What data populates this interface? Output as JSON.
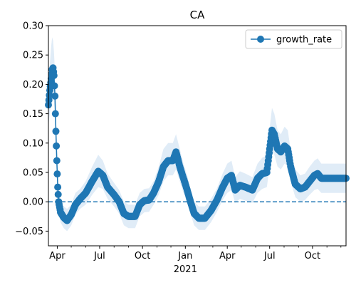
{
  "chart_data": {
    "type": "line",
    "title": "CA",
    "xlabel": "2021",
    "ylabel": "",
    "ylim": [
      -0.075,
      0.3
    ],
    "xlim": [
      "2020-03-13",
      "2021-12-12"
    ],
    "x_ticks": [
      {
        "date": "2020-04-01",
        "label": "Apr"
      },
      {
        "date": "2020-07-01",
        "label": "Jul"
      },
      {
        "date": "2020-10-01",
        "label": "Oct"
      },
      {
        "date": "2021-01-01",
        "label": "Jan"
      },
      {
        "date": "2021-04-01",
        "label": "Apr"
      },
      {
        "date": "2021-07-01",
        "label": "Jul"
      },
      {
        "date": "2021-10-01",
        "label": "Oct"
      }
    ],
    "x_minor_ticks": [
      "2020-05-01",
      "2020-06-01",
      "2020-08-01",
      "2020-09-01",
      "2020-11-01",
      "2020-12-01",
      "2021-02-01",
      "2021-03-01",
      "2021-05-01",
      "2021-06-01",
      "2021-08-01",
      "2021-09-01",
      "2021-11-01",
      "2021-12-01"
    ],
    "y_ticks": [
      -0.05,
      0.0,
      0.05,
      0.1,
      0.15,
      0.2,
      0.25,
      0.3
    ],
    "y_tick_labels": [
      "−0.05",
      "0.00",
      "0.05",
      "0.10",
      "0.15",
      "0.20",
      "0.25",
      "0.30"
    ],
    "reference_line": {
      "y": 0.0,
      "style": "dashed"
    },
    "legend": {
      "position": "top-right",
      "entries": [
        "growth_rate"
      ]
    },
    "grid": false,
    "series": [
      {
        "name": "growth_rate",
        "color": "#1f77b4",
        "band_color": "#d6e6f4",
        "points": [
          {
            "x": "2020-03-13",
            "y": 0.165,
            "lo": 0.13,
            "hi": 0.2
          },
          {
            "x": "2020-03-16",
            "y": 0.19,
            "lo": 0.15,
            "hi": 0.235
          },
          {
            "x": "2020-03-19",
            "y": 0.21,
            "lo": 0.17,
            "hi": 0.265
          },
          {
            "x": "2020-03-21",
            "y": 0.225,
            "lo": 0.18,
            "hi": 0.28
          },
          {
            "x": "2020-03-23",
            "y": 0.228,
            "lo": 0.185,
            "hi": 0.275
          },
          {
            "x": "2020-03-25",
            "y": 0.215,
            "lo": 0.17,
            "hi": 0.255
          },
          {
            "x": "2020-03-27",
            "y": 0.18,
            "lo": 0.14,
            "hi": 0.22
          },
          {
            "x": "2020-03-29",
            "y": 0.12,
            "lo": 0.09,
            "hi": 0.155
          },
          {
            "x": "2020-03-31",
            "y": 0.07,
            "lo": 0.045,
            "hi": 0.1
          },
          {
            "x": "2020-04-02",
            "y": 0.025,
            "lo": 0.005,
            "hi": 0.05
          },
          {
            "x": "2020-04-04",
            "y": 0.0,
            "lo": -0.015,
            "hi": 0.02
          },
          {
            "x": "2020-04-08",
            "y": -0.018,
            "lo": -0.035,
            "hi": 0.0
          },
          {
            "x": "2020-04-15",
            "y": -0.027,
            "lo": -0.045,
            "hi": -0.008
          },
          {
            "x": "2020-04-22",
            "y": -0.032,
            "lo": -0.05,
            "hi": -0.012
          },
          {
            "x": "2020-05-01",
            "y": -0.022,
            "lo": -0.04,
            "hi": -0.005
          },
          {
            "x": "2020-05-10",
            "y": -0.005,
            "lo": -0.022,
            "hi": 0.015
          },
          {
            "x": "2020-05-20",
            "y": 0.005,
            "lo": -0.012,
            "hi": 0.022
          },
          {
            "x": "2020-06-01",
            "y": 0.015,
            "lo": -0.005,
            "hi": 0.035
          },
          {
            "x": "2020-06-15",
            "y": 0.035,
            "lo": 0.012,
            "hi": 0.06
          },
          {
            "x": "2020-06-28",
            "y": 0.052,
            "lo": 0.025,
            "hi": 0.08
          },
          {
            "x": "2020-07-08",
            "y": 0.045,
            "lo": 0.022,
            "hi": 0.07
          },
          {
            "x": "2020-07-18",
            "y": 0.025,
            "lo": 0.005,
            "hi": 0.048
          },
          {
            "x": "2020-08-01",
            "y": 0.012,
            "lo": -0.008,
            "hi": 0.032
          },
          {
            "x": "2020-08-12",
            "y": 0.0,
            "lo": -0.02,
            "hi": 0.02
          },
          {
            "x": "2020-08-22",
            "y": -0.02,
            "lo": -0.04,
            "hi": 0.0
          },
          {
            "x": "2020-09-01",
            "y": -0.025,
            "lo": -0.045,
            "hi": -0.005
          },
          {
            "x": "2020-09-15",
            "y": -0.025,
            "lo": -0.045,
            "hi": -0.005
          },
          {
            "x": "2020-09-25",
            "y": -0.005,
            "lo": -0.025,
            "hi": 0.015
          },
          {
            "x": "2020-10-05",
            "y": 0.002,
            "lo": -0.018,
            "hi": 0.022
          },
          {
            "x": "2020-10-15",
            "y": 0.003,
            "lo": -0.017,
            "hi": 0.023
          },
          {
            "x": "2020-10-25",
            "y": 0.015,
            "lo": -0.005,
            "hi": 0.035
          },
          {
            "x": "2020-11-05",
            "y": 0.035,
            "lo": 0.012,
            "hi": 0.06
          },
          {
            "x": "2020-11-15",
            "y": 0.06,
            "lo": 0.035,
            "hi": 0.09
          },
          {
            "x": "2020-11-25",
            "y": 0.07,
            "lo": 0.045,
            "hi": 0.1
          },
          {
            "x": "2020-12-05",
            "y": 0.07,
            "lo": 0.045,
            "hi": 0.1
          },
          {
            "x": "2020-12-12",
            "y": 0.085,
            "lo": 0.055,
            "hi": 0.115
          },
          {
            "x": "2020-12-20",
            "y": 0.06,
            "lo": 0.035,
            "hi": 0.09
          },
          {
            "x": "2020-12-28",
            "y": 0.04,
            "lo": 0.015,
            "hi": 0.065
          },
          {
            "x": "2021-01-05",
            "y": 0.02,
            "lo": -0.002,
            "hi": 0.045
          },
          {
            "x": "2021-01-12",
            "y": 0.0,
            "lo": -0.02,
            "hi": 0.022
          },
          {
            "x": "2021-01-20",
            "y": -0.02,
            "lo": -0.04,
            "hi": 0.0
          },
          {
            "x": "2021-01-30",
            "y": -0.028,
            "lo": -0.048,
            "hi": -0.008
          },
          {
            "x": "2021-02-12",
            "y": -0.028,
            "lo": -0.048,
            "hi": -0.008
          },
          {
            "x": "2021-02-25",
            "y": -0.015,
            "lo": -0.035,
            "hi": 0.005
          },
          {
            "x": "2021-03-10",
            "y": 0.003,
            "lo": -0.017,
            "hi": 0.023
          },
          {
            "x": "2021-03-22",
            "y": 0.025,
            "lo": 0.003,
            "hi": 0.048
          },
          {
            "x": "2021-04-01",
            "y": 0.04,
            "lo": 0.015,
            "hi": 0.065
          },
          {
            "x": "2021-04-10",
            "y": 0.045,
            "lo": 0.02,
            "hi": 0.07
          },
          {
            "x": "2021-04-18",
            "y": 0.02,
            "lo": -0.002,
            "hi": 0.042
          },
          {
            "x": "2021-04-28",
            "y": 0.028,
            "lo": 0.005,
            "hi": 0.052
          },
          {
            "x": "2021-05-10",
            "y": 0.025,
            "lo": 0.002,
            "hi": 0.048
          },
          {
            "x": "2021-05-25",
            "y": 0.02,
            "lo": -0.002,
            "hi": 0.042
          },
          {
            "x": "2021-06-05",
            "y": 0.04,
            "lo": 0.015,
            "hi": 0.065
          },
          {
            "x": "2021-06-15",
            "y": 0.048,
            "lo": 0.022,
            "hi": 0.075
          },
          {
            "x": "2021-06-25",
            "y": 0.05,
            "lo": 0.025,
            "hi": 0.078
          },
          {
            "x": "2021-07-01",
            "y": 0.09,
            "lo": 0.06,
            "hi": 0.125
          },
          {
            "x": "2021-07-06",
            "y": 0.122,
            "lo": 0.085,
            "hi": 0.16
          },
          {
            "x": "2021-07-11",
            "y": 0.115,
            "lo": 0.08,
            "hi": 0.15
          },
          {
            "x": "2021-07-18",
            "y": 0.09,
            "lo": 0.06,
            "hi": 0.122
          },
          {
            "x": "2021-07-25",
            "y": 0.085,
            "lo": 0.055,
            "hi": 0.115
          },
          {
            "x": "2021-08-02",
            "y": 0.095,
            "lo": 0.065,
            "hi": 0.128
          },
          {
            "x": "2021-08-09",
            "y": 0.09,
            "lo": 0.06,
            "hi": 0.122
          },
          {
            "x": "2021-08-15",
            "y": 0.06,
            "lo": 0.035,
            "hi": 0.088
          },
          {
            "x": "2021-08-25",
            "y": 0.03,
            "lo": 0.008,
            "hi": 0.055
          },
          {
            "x": "2021-09-05",
            "y": 0.022,
            "lo": 0.0,
            "hi": 0.045
          },
          {
            "x": "2021-09-15",
            "y": 0.025,
            "lo": 0.003,
            "hi": 0.048
          },
          {
            "x": "2021-09-25",
            "y": 0.035,
            "lo": 0.012,
            "hi": 0.06
          },
          {
            "x": "2021-10-05",
            "y": 0.045,
            "lo": 0.02,
            "hi": 0.07
          },
          {
            "x": "2021-10-12",
            "y": 0.048,
            "lo": 0.022,
            "hi": 0.074
          },
          {
            "x": "2021-10-20",
            "y": 0.04,
            "lo": 0.015,
            "hi": 0.065
          },
          {
            "x": "2021-11-01",
            "y": 0.04,
            "lo": 0.015,
            "hi": 0.065
          },
          {
            "x": "2021-11-15",
            "y": 0.04,
            "lo": 0.015,
            "hi": 0.065
          },
          {
            "x": "2021-12-01",
            "y": 0.04,
            "lo": 0.015,
            "hi": 0.065
          },
          {
            "x": "2021-12-12",
            "y": 0.04,
            "lo": 0.015,
            "hi": 0.065
          }
        ]
      }
    ]
  }
}
